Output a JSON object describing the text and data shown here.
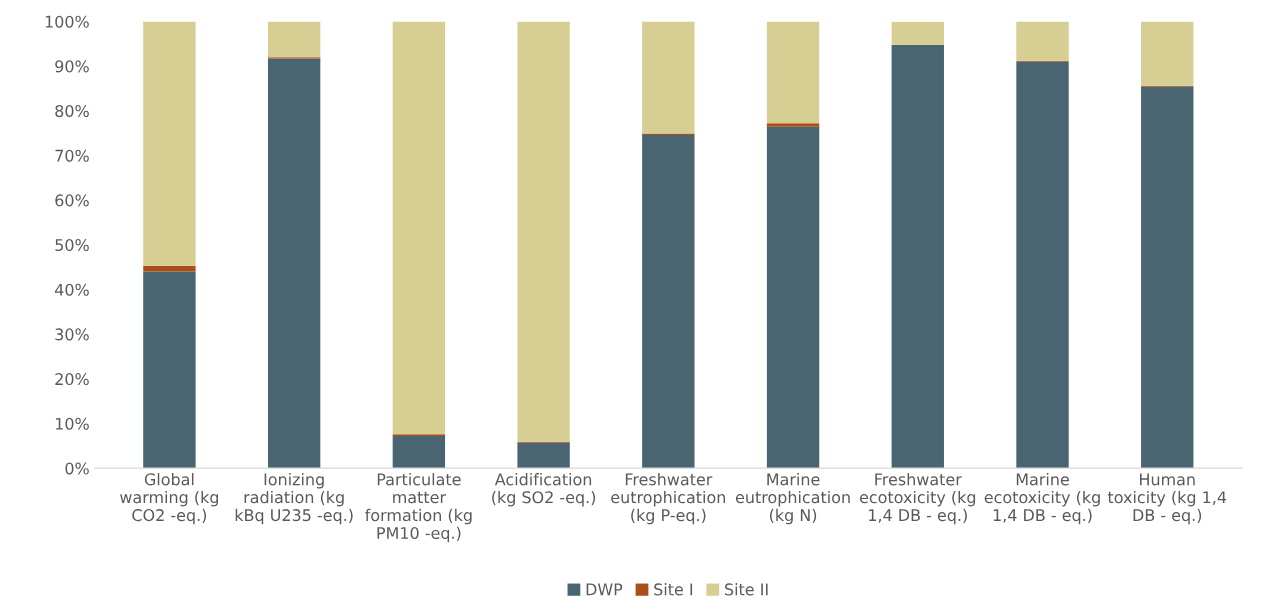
{
  "chart_data": {
    "type": "bar",
    "stacked": true,
    "categories": [
      "Global\nwarming (kg\nCO2 -eq.)",
      "Ionizing\nradiation (kg\nkBq U235 -eq.)",
      "Particulate\nmatter\nformation (kg\nPM10 -eq.)",
      "Acidification\n(kg SO2 -eq.)",
      "Freshwater\neutrophication\n(kg P-eq.)",
      "Marine\neutrophication\n(kg N)",
      "Freshwater\necotoxicity (kg\n1,4 DB - eq.)",
      "Marine\necotoxicity (kg\n1,4 DB - eq.)",
      "Human\ntoxicity (kg 1,4\nDB - eq.)"
    ],
    "series": [
      {
        "name": "DWP",
        "color": "#4a6572",
        "values": [
          44.0,
          91.7,
          7.2,
          5.7,
          74.6,
          76.4,
          94.7,
          91.0,
          85.4
        ]
      },
      {
        "name": "Site I",
        "color": "#a94f1a",
        "values": [
          1.3,
          0.3,
          0.4,
          0.2,
          0.3,
          0.8,
          null,
          0.2,
          0.2
        ]
      },
      {
        "name": "Site II",
        "color": "#d7ce94",
        "values": [
          54.7,
          8.0,
          92.4,
          94.1,
          25.1,
          22.8,
          5.2,
          8.8,
          14.4
        ]
      }
    ],
    "ylim": [
      0,
      100
    ],
    "yticks": [
      {
        "value": 0,
        "label": "0%"
      },
      {
        "value": 10,
        "label": "10%"
      },
      {
        "value": 20,
        "label": "20%"
      },
      {
        "value": 30,
        "label": "30%"
      },
      {
        "value": 40,
        "label": "40%"
      },
      {
        "value": 50,
        "label": "50%"
      },
      {
        "value": 60,
        "label": "60%"
      },
      {
        "value": 70,
        "label": "70%"
      },
      {
        "value": 80,
        "label": "80%"
      },
      {
        "value": 90,
        "label": "90%"
      },
      {
        "value": 100,
        "label": "100%"
      }
    ],
    "grid": false,
    "legend": "bottom"
  }
}
